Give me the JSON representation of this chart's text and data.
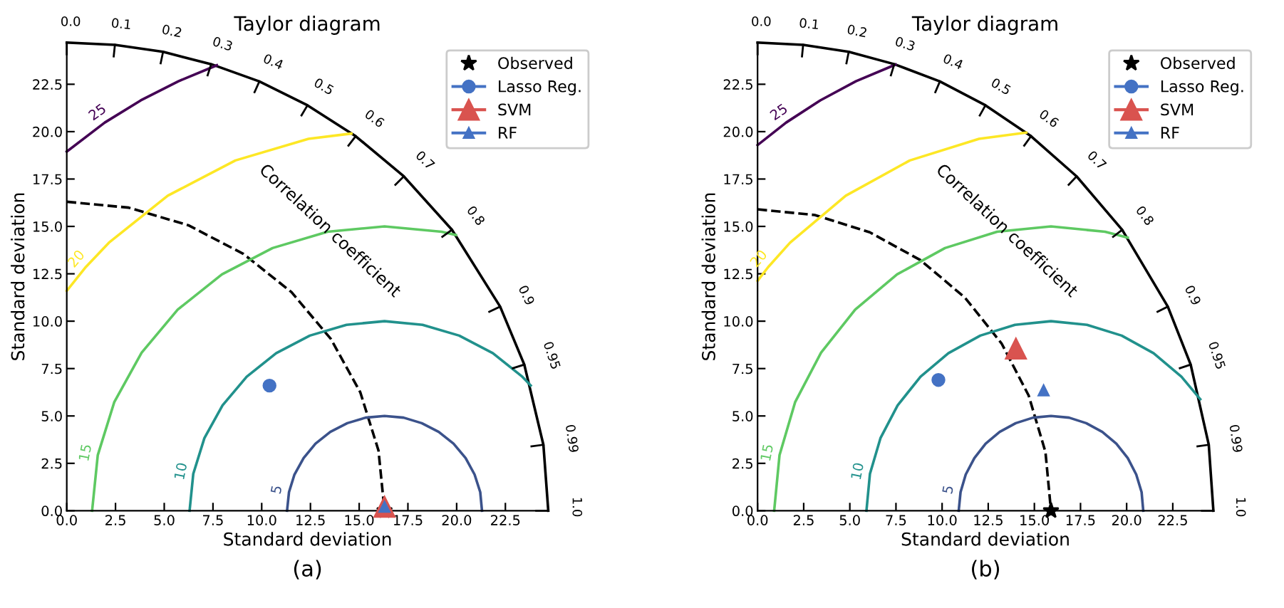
{
  "chart_data": [
    {
      "type": "scatter",
      "title": "Taylor diagram",
      "xlabel": "Standard deviation",
      "ylabel": "Standard deviation",
      "xlim": [
        0,
        24.7
      ],
      "ylim": [
        0,
        24.7
      ],
      "xticks": [
        {
          "value": 0,
          "label": "0.0"
        },
        2.5,
        {
          "value": 5,
          "label": "5.0"
        },
        7.5,
        {
          "value": 10,
          "label": "10.0"
        },
        12.5,
        {
          "value": 15,
          "label": "15.0"
        },
        17.5,
        {
          "value": 20,
          "label": "20.0"
        },
        22.5
      ],
      "yticks": [
        {
          "value": 0,
          "label": "0.0"
        },
        2.5,
        {
          "value": 5,
          "label": "5.0"
        },
        7.5,
        {
          "value": 10,
          "label": "10.0"
        },
        12.5,
        {
          "value": 15,
          "label": "15.0"
        },
        17.5,
        {
          "value": 20,
          "label": "20.0"
        },
        22.5
      ],
      "legend": "top right",
      "grid": false,
      "series": [
        {
          "type": "line",
          "color": "#000000",
          "line_style": "solid",
          "x": [
            0,
            2.47,
            4.94,
            7.41,
            9.88,
            12.35,
            14.82,
            17.29,
            19.76,
            22.23,
            23.47,
            24.45,
            24.7
          ],
          "values": [
            24.7,
            24.58,
            24.21,
            23.56,
            22.65,
            21.39,
            19.76,
            17.64,
            14.82,
            10.77,
            7.71,
            3.48,
            0
          ]
        },
        {
          "type": "line",
          "color": "#000000",
          "line_style": "dashed",
          "x": [
            0,
            3.18,
            6.24,
            9.06,
            11.53,
            13.55,
            15.06,
            15.99,
            16.3
          ],
          "values": [
            16.3,
            15.99,
            15.06,
            13.55,
            11.53,
            9.06,
            6.24,
            3.18,
            0
          ]
        },
        {
          "type": "line",
          "name": "5",
          "color": "#3b528b",
          "line_style": "solid",
          "x": [
            11.3,
            11.4,
            11.68,
            12.15,
            12.76,
            13.52,
            14.39,
            15.33,
            16.3,
            17.28,
            18.21,
            19.08,
            19.84,
            20.46,
            20.92,
            21.21,
            21.3
          ],
          "values": [
            0,
            0.98,
            1.91,
            2.78,
            3.54,
            4.16,
            4.62,
            4.91,
            5,
            4.91,
            4.62,
            4.16,
            3.54,
            2.78,
            1.91,
            0.98,
            0
          ]
        },
        {
          "type": "line",
          "name": "10",
          "color": "#21918c",
          "line_style": "solid",
          "x": [
            6.3,
            6.49,
            7.06,
            7.99,
            9.23,
            10.74,
            12.47,
            14.35,
            16.3,
            18.25,
            20.13,
            21.86,
            23.37,
            23.8
          ],
          "values": [
            0,
            1.95,
            3.83,
            5.56,
            7.07,
            8.31,
            9.24,
            9.81,
            10,
            9.81,
            9.24,
            8.31,
            7.07,
            6.61
          ]
        },
        {
          "type": "line",
          "name": "15",
          "color": "#5ec962",
          "line_style": "solid",
          "x": [
            1.3,
            1.59,
            2.44,
            3.84,
            5.69,
            7.96,
            10.56,
            13.38,
            16.3,
            19.23,
            19.96
          ],
          "values": [
            0,
            2.93,
            5.74,
            8.34,
            10.61,
            12.47,
            13.86,
            14.72,
            15,
            14.72,
            14.55
          ]
        },
        {
          "type": "line",
          "name": "20",
          "color": "#fde725",
          "line_style": "solid",
          "x": [
            0,
            0.98,
            2.16,
            5.18,
            8.65,
            12.4,
            14.6
          ],
          "values": [
            11.6,
            12.86,
            14.14,
            16.62,
            18.48,
            19.62,
            19.9
          ]
        },
        {
          "type": "line",
          "name": "25",
          "color": "#440154",
          "line_style": "solid",
          "x": [
            0,
            1.95,
            3.8,
            5.73,
            7.7
          ],
          "values": [
            18.95,
            20.48,
            21.65,
            22.66,
            23.5
          ]
        },
        {
          "type": "scatter",
          "name": "Observed",
          "color": "#000000",
          "marker": "star",
          "x": [
            16.3
          ],
          "values": [
            0
          ]
        },
        {
          "type": "scatter",
          "name": "Lasso Reg.",
          "color": "#4472c4",
          "marker": "circle",
          "x": [
            10.4
          ],
          "values": [
            6.6
          ]
        },
        {
          "type": "scatter",
          "name": "SVM",
          "color": "#d9534f",
          "marker": "triangle",
          "x": [
            16.3
          ],
          "values": [
            0.2
          ]
        },
        {
          "type": "scatter",
          "name": "RF",
          "color": "#4472c4",
          "marker": "triangle",
          "x": [
            16.3
          ],
          "values": [
            0.2
          ]
        }
      ],
      "annotations": [
        "Correlation coefficient",
        "(a)",
        {
          "text": "0.0",
          "x": 0,
          "y": 24.7
        },
        {
          "text": "0.1",
          "x": 2.47,
          "y": 24.58
        },
        {
          "text": "0.2",
          "x": 4.94,
          "y": 24.21
        },
        {
          "text": "0.3",
          "x": 7.41,
          "y": 23.56
        },
        {
          "text": "0.4",
          "x": 9.88,
          "y": 22.65
        },
        {
          "text": "0.5",
          "x": 12.35,
          "y": 21.39
        },
        {
          "text": "0.6",
          "x": 14.82,
          "y": 19.76
        },
        {
          "text": "0.7",
          "x": 17.29,
          "y": 17.64
        },
        {
          "text": "0.8",
          "x": 19.76,
          "y": 14.82
        },
        {
          "text": "0.9",
          "x": 22.23,
          "y": 10.77
        },
        {
          "text": "0.95",
          "x": 23.47,
          "y": 7.71
        },
        {
          "text": "0.99",
          "x": 24.45,
          "y": 3.48
        },
        {
          "text": "1.0",
          "x": 24.7,
          "y": 0
        }
      ]
    },
    {
      "type": "scatter",
      "title": "Taylor diagram",
      "xlabel": "Standard deviation",
      "ylabel": "Standard deviation",
      "xlim": [
        0,
        24.7
      ],
      "ylim": [
        0,
        24.7
      ],
      "xticks": [
        {
          "value": 0,
          "label": "0.0"
        },
        2.5,
        {
          "value": 5,
          "label": "5.0"
        },
        7.5,
        {
          "value": 10,
          "label": "10.0"
        },
        12.5,
        {
          "value": 15,
          "label": "15.0"
        },
        17.5,
        {
          "value": 20,
          "label": "20.0"
        },
        22.5
      ],
      "yticks": [
        {
          "value": 0,
          "label": "0.0"
        },
        2.5,
        {
          "value": 5,
          "label": "5.0"
        },
        7.5,
        {
          "value": 10,
          "label": "10.0"
        },
        12.5,
        {
          "value": 15,
          "label": "15.0"
        },
        17.5,
        {
          "value": 20,
          "label": "20.0"
        },
        22.5
      ],
      "legend": "top right",
      "grid": false,
      "series": [
        {
          "type": "line",
          "color": "#000000",
          "line_style": "solid",
          "x": [
            0,
            2.47,
            4.94,
            7.41,
            9.88,
            12.35,
            14.82,
            17.29,
            19.76,
            22.23,
            23.47,
            24.45,
            24.7
          ],
          "values": [
            24.7,
            24.58,
            24.21,
            23.56,
            22.65,
            21.39,
            19.76,
            17.64,
            14.82,
            10.77,
            7.71,
            3.48,
            0
          ]
        },
        {
          "type": "line",
          "color": "#000000",
          "line_style": "dashed",
          "x": [
            0,
            3.1,
            6.08,
            8.83,
            11.24,
            13.22,
            14.69,
            15.6,
            15.9
          ],
          "values": [
            15.9,
            15.6,
            14.69,
            13.22,
            11.24,
            8.83,
            6.08,
            3.1,
            0
          ]
        },
        {
          "type": "line",
          "name": "5",
          "color": "#3b528b",
          "line_style": "solid",
          "x": [
            10.9,
            11.0,
            11.28,
            11.75,
            12.36,
            13.12,
            13.99,
            14.93,
            15.9,
            16.88,
            17.81,
            18.68,
            19.44,
            20.06,
            20.52,
            20.81,
            20.9
          ],
          "values": [
            0,
            0.98,
            1.91,
            2.78,
            3.54,
            4.16,
            4.62,
            4.91,
            5,
            4.91,
            4.62,
            4.16,
            3.54,
            2.78,
            1.91,
            0.98,
            0
          ]
        },
        {
          "type": "line",
          "name": "10",
          "color": "#21918c",
          "line_style": "solid",
          "x": [
            5.9,
            6.09,
            6.66,
            7.59,
            8.83,
            10.34,
            12.07,
            13.95,
            15.9,
            17.85,
            19.73,
            21.46,
            22.97,
            23.99
          ],
          "values": [
            0,
            1.95,
            3.83,
            5.56,
            7.07,
            8.31,
            9.24,
            9.81,
            10,
            9.81,
            9.24,
            8.31,
            7.07,
            5.88
          ]
        },
        {
          "type": "line",
          "name": "15",
          "color": "#5ec962",
          "line_style": "solid",
          "x": [
            0.9,
            1.19,
            2.04,
            3.44,
            5.29,
            7.56,
            10.16,
            12.98,
            15.9,
            18.83,
            20.06
          ],
          "values": [
            0,
            2.93,
            5.74,
            8.34,
            10.61,
            12.47,
            13.86,
            14.72,
            15,
            14.72,
            14.41
          ]
        },
        {
          "type": "line",
          "name": "20",
          "color": "#fde725",
          "line_style": "solid",
          "x": [
            0,
            0.58,
            1.76,
            4.78,
            8.25,
            12.0,
            14.56
          ],
          "values": [
            12.13,
            12.86,
            14.14,
            16.62,
            18.48,
            19.62,
            19.95
          ]
        },
        {
          "type": "line",
          "name": "25",
          "color": "#440154",
          "line_style": "solid",
          "x": [
            0,
            1.55,
            3.4,
            5.33,
            7.48
          ],
          "values": [
            19.29,
            20.48,
            21.65,
            22.66,
            23.54
          ]
        },
        {
          "type": "scatter",
          "name": "Observed",
          "color": "#000000",
          "marker": "star",
          "x": [
            15.9
          ],
          "values": [
            0
          ]
        },
        {
          "type": "scatter",
          "name": "Lasso Reg.",
          "color": "#4472c4",
          "marker": "circle",
          "x": [
            9.8
          ],
          "values": [
            6.9
          ]
        },
        {
          "type": "scatter",
          "name": "SVM",
          "color": "#d9534f",
          "marker": "triangle",
          "x": [
            14.0
          ],
          "values": [
            8.55
          ]
        },
        {
          "type": "scatter",
          "name": "RF",
          "color": "#4472c4",
          "marker": "triangle",
          "x": [
            15.5
          ],
          "values": [
            6.35
          ]
        }
      ],
      "annotations": [
        "Correlation coefficient",
        "(b)",
        {
          "text": "0.0",
          "x": 0,
          "y": 24.7
        },
        {
          "text": "0.1",
          "x": 2.47,
          "y": 24.58
        },
        {
          "text": "0.2",
          "x": 4.94,
          "y": 24.21
        },
        {
          "text": "0.3",
          "x": 7.41,
          "y": 23.56
        },
        {
          "text": "0.4",
          "x": 9.88,
          "y": 22.65
        },
        {
          "text": "0.5",
          "x": 12.35,
          "y": 21.39
        },
        {
          "text": "0.6",
          "x": 14.82,
          "y": 19.76
        },
        {
          "text": "0.7",
          "x": 17.29,
          "y": 17.64
        },
        {
          "text": "0.8",
          "x": 19.76,
          "y": 14.82
        },
        {
          "text": "0.9",
          "x": 22.23,
          "y": 10.77
        },
        {
          "text": "0.95",
          "x": 23.47,
          "y": 7.71
        },
        {
          "text": "0.99",
          "x": 24.45,
          "y": 3.48
        },
        {
          "text": "1.0",
          "x": 24.7,
          "y": 0
        }
      ]
    }
  ]
}
